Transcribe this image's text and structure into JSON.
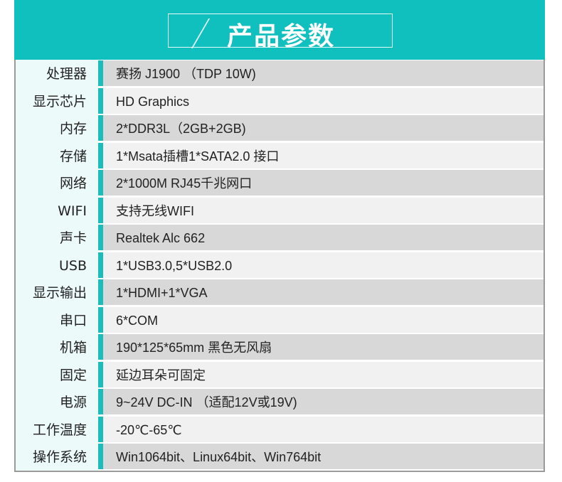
{
  "header": {
    "title": "产品参数",
    "color": "#0fc0bf"
  },
  "rows": [
    {
      "label": "处理器",
      "value": "赛扬 J1900 （TDP 10W)"
    },
    {
      "label": "显示芯片",
      "value": "HD Graphics"
    },
    {
      "label": "内存",
      "value": "2*DDR3L（2GB+2GB)"
    },
    {
      "label": "存储",
      "value": "1*Msata插槽1*SATA2.0 接口"
    },
    {
      "label": "网络",
      "value": "2*1000M RJ45千兆网口"
    },
    {
      "label": "WIFI",
      "value": "支持无线WIFI"
    },
    {
      "label": "声卡",
      "value": "Realtek Alc 662"
    },
    {
      "label": "USB",
      "value": "1*USB3.0,5*USB2.0"
    },
    {
      "label": "显示输出",
      "value": "1*HDMI+1*VGA"
    },
    {
      "label": "串口",
      "value": "6*COM"
    },
    {
      "label": "机箱",
      "value": "190*125*65mm  黑色无风扇"
    },
    {
      "label": "固定",
      "value": "延边耳朵可固定"
    },
    {
      "label": "电源",
      "value": "9~24V DC-IN （适配12V或19V)"
    },
    {
      "label": "工作温度",
      "value": "-20℃-65℃"
    },
    {
      "label": "操作系统",
      "value": "Win1064bit、Linux64bit、Win764bit"
    }
  ]
}
